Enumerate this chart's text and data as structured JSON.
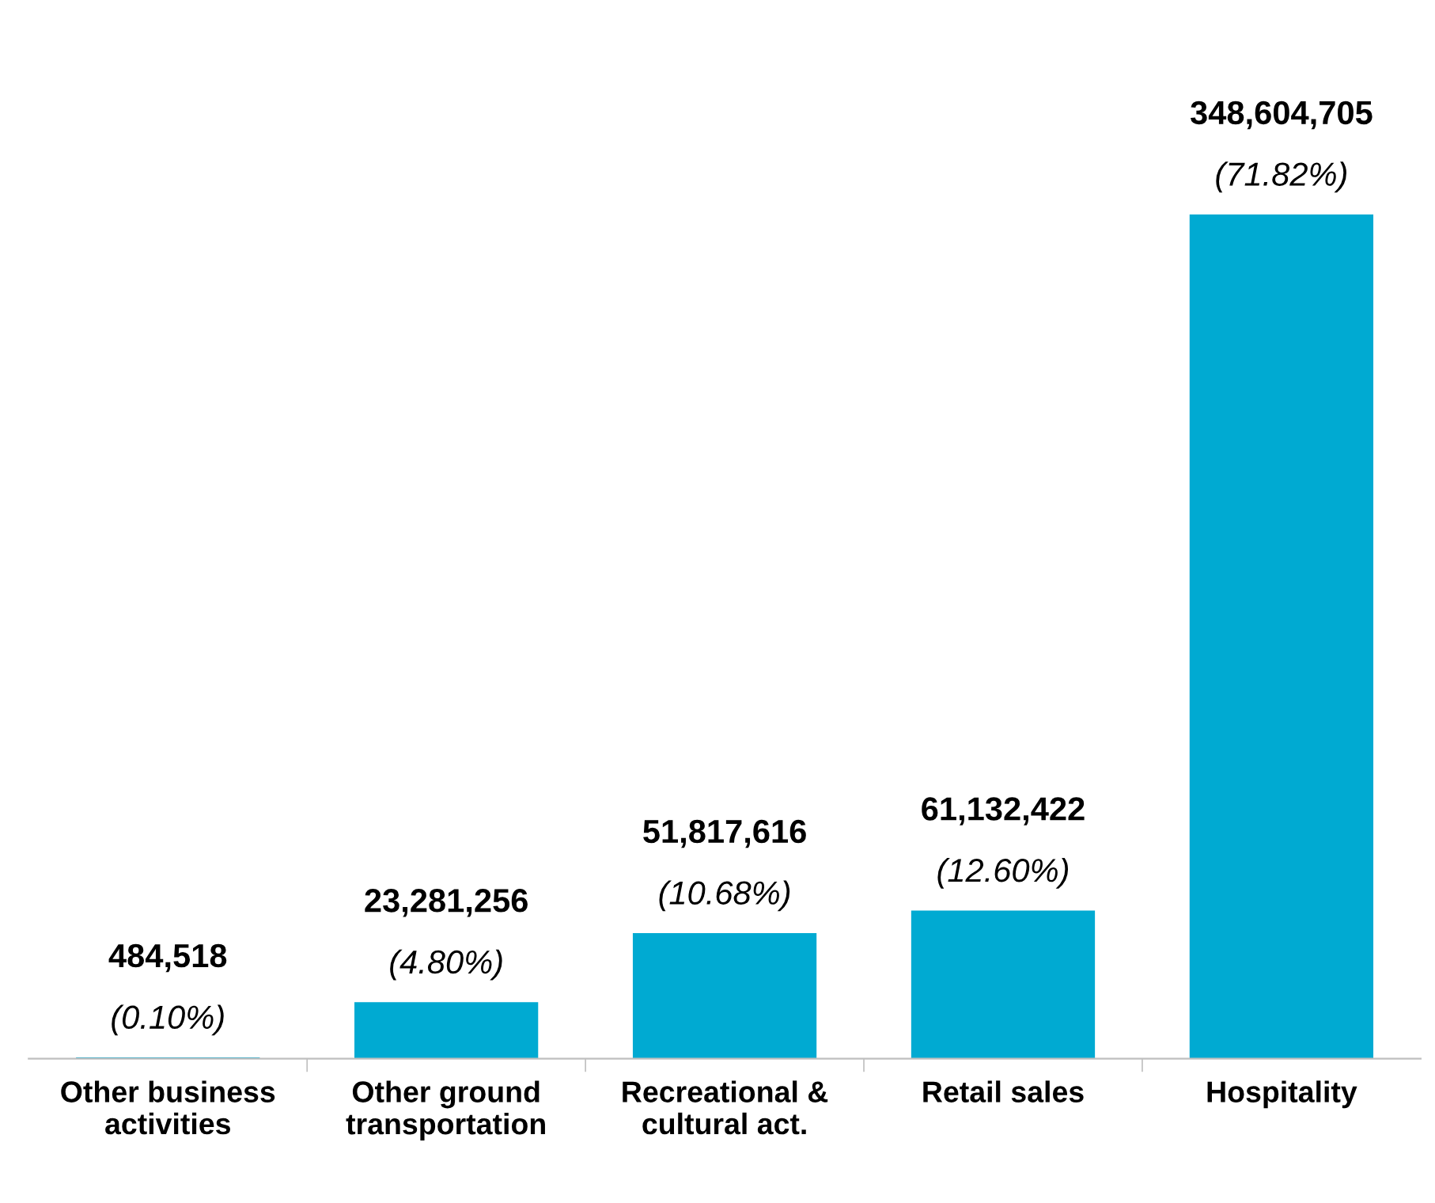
{
  "chart_data": {
    "type": "bar",
    "categories": [
      "Other business\nactivities",
      "Other ground\ntransportation",
      "Recreational &\ncultural act.",
      "Retail sales",
      "Hospitality"
    ],
    "values": [
      484518,
      23281256,
      51817616,
      61132422,
      348604705
    ],
    "value_labels": [
      "484,518\n(0.10%)",
      "23,281,256\n(4.80%)",
      "51,817,616\n(10.68%)",
      "61,132,422\n(12.60%)",
      "348,604,705\n(71.82%)"
    ],
    "color": "#00aad2",
    "grid": false,
    "legend": false
  }
}
